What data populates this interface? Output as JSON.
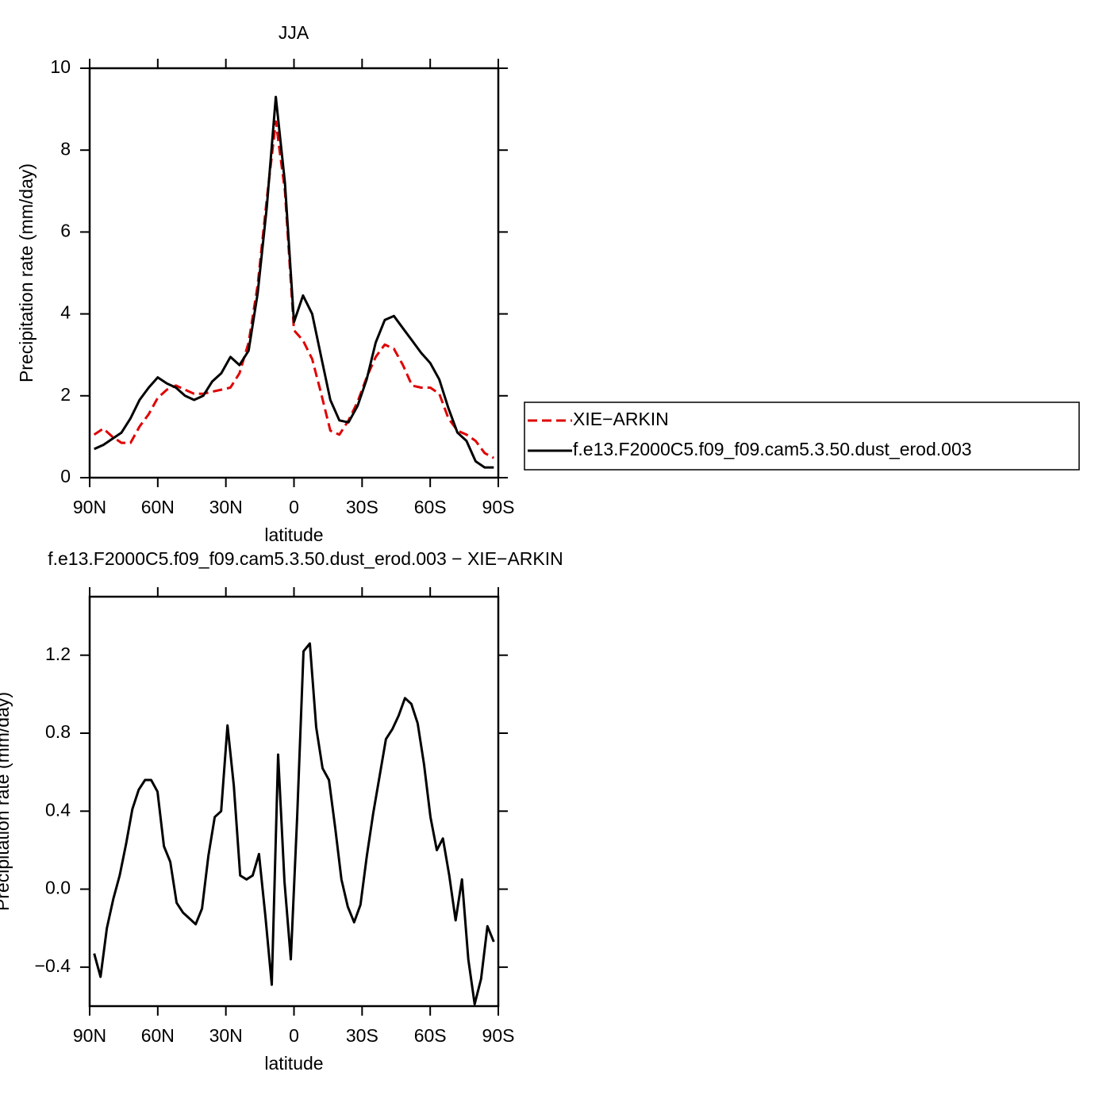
{
  "chart_data": [
    {
      "type": "line",
      "title": "JJA",
      "x_label": "latitude",
      "y_label": "Precipitation rate (mm/day)",
      "x": [
        88,
        84,
        80,
        76,
        72,
        68,
        64,
        60,
        56,
        52,
        48,
        44,
        40,
        36,
        32,
        28,
        24,
        20,
        16,
        12,
        8,
        4,
        0,
        -4,
        -8,
        -12,
        -16,
        -20,
        -24,
        -28,
        -32,
        -36,
        -40,
        -44,
        -48,
        -52,
        -56,
        -60,
        -64,
        -68,
        -72,
        -76,
        -80,
        -84,
        -88
      ],
      "xlim": [
        90,
        -90
      ],
      "xticks": [
        {
          "value": 90,
          "label": "90N"
        },
        {
          "value": 60,
          "label": "60N"
        },
        {
          "value": 30,
          "label": "30N"
        },
        0,
        {
          "value": -30,
          "label": "30S"
        },
        {
          "value": -60,
          "label": "60S"
        },
        {
          "value": -90,
          "label": "90S"
        }
      ],
      "ylim": [
        0,
        10
      ],
      "yticks": [
        0,
        2,
        4,
        6,
        8,
        10
      ],
      "legend": "right",
      "series": [
        {
          "name": "XIE−ARKIN",
          "color": "#e00000",
          "dash": true,
          "values": [
            1.05,
            1.2,
            1.0,
            0.85,
            0.85,
            1.25,
            1.55,
            1.95,
            2.15,
            2.25,
            2.15,
            2.05,
            2.05,
            2.1,
            2.15,
            2.2,
            2.55,
            3.3,
            4.7,
            6.8,
            8.7,
            7.0,
            3.6,
            3.35,
            2.9,
            2.05,
            1.15,
            1.05,
            1.4,
            1.85,
            2.45,
            2.95,
            3.25,
            3.15,
            2.75,
            2.25,
            2.2,
            2.2,
            2.05,
            1.45,
            1.15,
            1.05,
            0.9,
            0.6,
            0.48
          ]
        },
        {
          "name": "f.e13.F2000C5.f09_f09.cam5.3.50.dust_erod.003",
          "color": "#000000",
          "dash": false,
          "values": [
            0.7,
            0.8,
            0.95,
            1.1,
            1.45,
            1.9,
            2.2,
            2.45,
            2.3,
            2.2,
            2.0,
            1.9,
            2.0,
            2.35,
            2.55,
            2.95,
            2.75,
            3.1,
            4.5,
            6.6,
            9.3,
            7.2,
            3.8,
            4.45,
            4.0,
            2.95,
            1.9,
            1.4,
            1.35,
            1.75,
            2.4,
            3.3,
            3.85,
            3.95,
            3.65,
            3.35,
            3.05,
            2.8,
            2.4,
            1.7,
            1.1,
            0.9,
            0.4,
            0.25,
            0.25
          ]
        }
      ]
    },
    {
      "type": "line",
      "title": "f.e13.F2000C5.f09_f09.cam5.3.50.dust_erod.003 − XIE−ARKIN",
      "x_label": "latitude",
      "y_label": "Precipitation rate (mm/day)",
      "x": [
        88.0,
        85.2,
        82.4,
        79.6,
        76.8,
        74.0,
        71.2,
        68.4,
        65.6,
        62.9,
        60.1,
        57.3,
        54.5,
        51.7,
        48.9,
        46.1,
        43.3,
        40.5,
        37.7,
        34.9,
        32.1,
        29.3,
        26.5,
        23.7,
        20.9,
        18.2,
        15.4,
        12.6,
        9.8,
        7.0,
        4.2,
        1.4,
        -1.4,
        -4.2,
        -7.0,
        -9.8,
        -12.6,
        -15.4,
        -18.2,
        -20.9,
        -23.7,
        -26.5,
        -29.3,
        -32.1,
        -34.9,
        -37.7,
        -40.5,
        -43.3,
        -46.1,
        -48.9,
        -51.7,
        -54.5,
        -57.3,
        -60.1,
        -62.9,
        -65.6,
        -68.4,
        -71.2,
        -74.0,
        -76.8,
        -79.6,
        -82.4,
        -85.2,
        -88.0
      ],
      "xlim": [
        90,
        -90
      ],
      "xticks": [
        {
          "value": 90,
          "label": "90N"
        },
        {
          "value": 60,
          "label": "60N"
        },
        {
          "value": 30,
          "label": "30N"
        },
        0,
        {
          "value": -30,
          "label": "30S"
        },
        {
          "value": -60,
          "label": "60S"
        },
        {
          "value": -90,
          "label": "90S"
        }
      ],
      "ylim": [
        -0.6,
        1.5
      ],
      "yticks": [
        {
          "value": -0.4,
          "label": "−0.4"
        },
        {
          "value": 0,
          "label": "0.0"
        },
        0.4,
        0.8,
        1.2
      ],
      "color": "#000000",
      "values": [
        -0.33,
        -0.45,
        -0.2,
        -0.05,
        0.07,
        0.23,
        0.41,
        0.51,
        0.56,
        0.56,
        0.5,
        0.22,
        0.14,
        -0.07,
        -0.12,
        -0.15,
        -0.18,
        -0.1,
        0.17,
        0.37,
        0.4,
        0.84,
        0.53,
        0.07,
        0.05,
        0.07,
        0.18,
        -0.14,
        -0.49,
        0.69,
        0.04,
        -0.36,
        0.37,
        1.22,
        1.26,
        0.83,
        0.62,
        0.56,
        0.31,
        0.05,
        -0.09,
        -0.17,
        -0.08,
        0.17,
        0.39,
        0.58,
        0.77,
        0.82,
        0.89,
        0.98,
        0.95,
        0.85,
        0.64,
        0.37,
        0.2,
        0.26,
        0.07,
        -0.16,
        0.05,
        -0.36,
        -0.59,
        -0.46,
        -0.19,
        -0.27
      ]
    }
  ]
}
